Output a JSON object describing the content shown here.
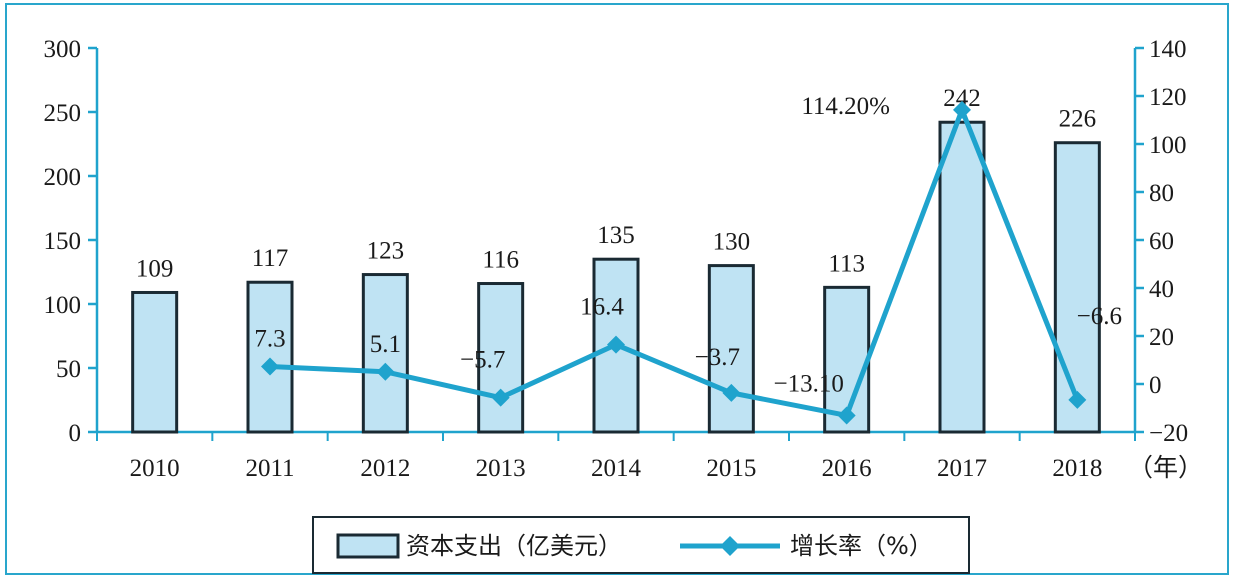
{
  "chart_data": {
    "type": "bar",
    "categories": [
      "2010",
      "2011",
      "2012",
      "2013",
      "2014",
      "2015",
      "2016",
      "2017",
      "2018"
    ],
    "x_unit": "（年）",
    "series": [
      {
        "name": "资本支出（亿美元）",
        "type": "bar",
        "axis": "left",
        "values": [
          109,
          117,
          123,
          116,
          135,
          130,
          113,
          242,
          226
        ],
        "labels": [
          "109",
          "117",
          "123",
          "116",
          "135",
          "130",
          "113",
          "242",
          "226"
        ]
      },
      {
        "name": "增长率（%）",
        "type": "line",
        "axis": "right",
        "values": [
          null,
          7.3,
          5.1,
          -5.7,
          16.4,
          -3.7,
          -13.1,
          114.2,
          -6.6
        ],
        "labels": [
          "",
          "7.3",
          "5.1",
          "−5.7",
          "16.4",
          "−3.7",
          "−13.10",
          "114.20%",
          "−6.6"
        ]
      }
    ],
    "y_left": {
      "min": 0,
      "max": 300,
      "ticks": [
        "0",
        "50",
        "100",
        "150",
        "200",
        "250",
        "300"
      ]
    },
    "y_right": {
      "min": -20,
      "max": 140,
      "ticks": [
        "−20",
        "0",
        "20",
        "40",
        "60",
        "80",
        "100",
        "120",
        "140"
      ]
    },
    "grid": false,
    "legend_position": "bottom-center",
    "colors": {
      "bar_fill": "#bfe3f3",
      "bar_stroke": "#1a2a33",
      "line": "#1fa3cd",
      "axis": "#1fa3cd",
      "frame": "#29a6cc"
    }
  }
}
